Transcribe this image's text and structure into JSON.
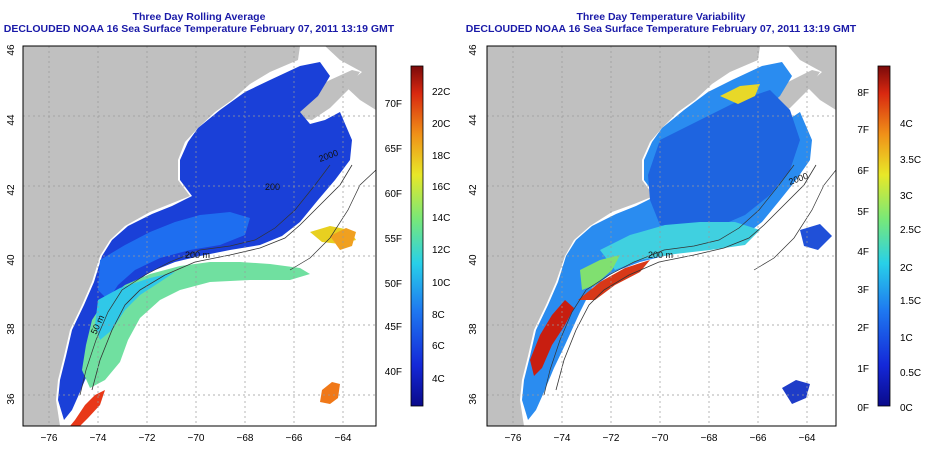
{
  "left_map": {
    "title": "Three Day Rolling Average",
    "subtitle": "DECLOUDED NOAA 16 Sea Surface Temperature February 07, 2011 13:19 GMT",
    "lon_ticks": [
      "−76",
      "−74",
      "−72",
      "−70",
      "−68",
      "−66",
      "−64"
    ],
    "lat_ticks": [
      "46",
      "44",
      "42",
      "40",
      "38",
      "36"
    ],
    "contour_labels": [
      "200 m",
      "50 m",
      "2000",
      "200"
    ],
    "colorbar": {
      "fahrenheit": [
        "70F",
        "65F",
        "60F",
        "55F",
        "50F",
        "45F",
        "40F"
      ],
      "celsius": [
        "22C",
        "20C",
        "18C",
        "16C",
        "14C",
        "12C",
        "10C",
        "8C",
        "6C",
        "4C"
      ]
    }
  },
  "right_map": {
    "title": "Three Day Temperature Variability",
    "subtitle": "DECLOUDED NOAA 16 Sea Surface Temperature February 07, 2011 13:19 GMT",
    "lon_ticks": [
      "−76",
      "−74",
      "−72",
      "−70",
      "−68",
      "−66",
      "−64"
    ],
    "lat_ticks": [
      "46",
      "44",
      "42",
      "40",
      "38",
      "36"
    ],
    "contour_labels": [
      "200 m",
      "2000"
    ],
    "colorbar": {
      "fahrenheit": [
        "8F",
        "7F",
        "6F",
        "5F",
        "4F",
        "3F",
        "2F",
        "1F",
        "0F"
      ],
      "celsius": [
        "4C",
        "3.5C",
        "3C",
        "2.5C",
        "2C",
        "1.5C",
        "1C",
        "0.5C",
        "0C"
      ]
    }
  },
  "colors": {
    "title": "#1a1aa8",
    "land": "#c0c0c0",
    "cold": "#1a3cd8",
    "warm": "#d83010"
  }
}
